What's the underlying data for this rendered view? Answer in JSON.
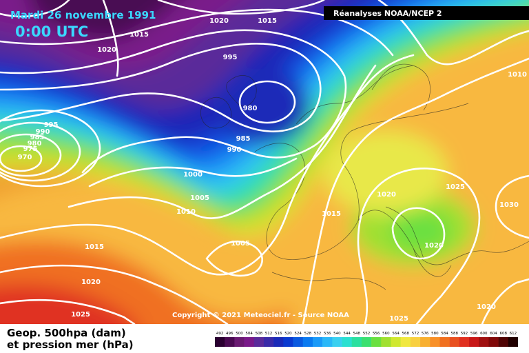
{
  "header": {
    "date": "Mardi 26 novembre 1991",
    "time": "0:00 UTC",
    "source_banner": "Réanalyses NOAA/NCEP 2"
  },
  "copyright": "Copyright © 2021 Meteociel.fr - Source NOAA",
  "legend": {
    "line1": "Geop. 500hpa (dam)",
    "line2": "et pression mer (hPa)",
    "ticks": [
      "492",
      "496",
      "500",
      "504",
      "508",
      "512",
      "516",
      "520",
      "524",
      "528",
      "532",
      "536",
      "540",
      "544",
      "548",
      "552",
      "556",
      "560",
      "564",
      "568",
      "572",
      "576",
      "580",
      "584",
      "588",
      "592",
      "596",
      "600",
      "604",
      "608",
      "612"
    ],
    "colors": [
      "#2a0030",
      "#4a0a52",
      "#6a1a72",
      "#7a1a8a",
      "#5a2a9a",
      "#3a2aa8",
      "#1a2ab8",
      "#0a3ad0",
      "#0a5ae0",
      "#0a7af0",
      "#1a9af8",
      "#2ab8f8",
      "#3ad0f0",
      "#2ae0d0",
      "#2ae0a0",
      "#3ae070",
      "#6ae040",
      "#a0e030",
      "#d0e830",
      "#f0e840",
      "#f8d040",
      "#f8b030",
      "#f89028",
      "#f07020",
      "#e85020",
      "#e03020",
      "#c81818",
      "#a01010",
      "#800808",
      "#500404",
      "#200000"
    ]
  },
  "chart_data": {
    "type": "map",
    "field": "500hPa geopotential (dam) shaded, sea-level pressure (hPa) contours",
    "isobar_labels": [
      {
        "text": "1020"
      },
      {
        "text": "1015"
      },
      {
        "text": "1015"
      },
      {
        "text": "1020"
      },
      {
        "text": "995"
      },
      {
        "text": "980"
      },
      {
        "text": "985"
      },
      {
        "text": "990"
      },
      {
        "text": "995"
      },
      {
        "text": "990"
      },
      {
        "text": "985"
      },
      {
        "text": "980"
      },
      {
        "text": "975"
      },
      {
        "text": "970"
      },
      {
        "text": "1000"
      },
      {
        "text": "1005"
      },
      {
        "text": "1010"
      },
      {
        "text": "1005"
      },
      {
        "text": "1015"
      },
      {
        "text": "1020"
      },
      {
        "text": "1025"
      },
      {
        "text": "1015"
      },
      {
        "text": "1020"
      },
      {
        "text": "1025"
      },
      {
        "text": "1030"
      },
      {
        "text": "1020"
      },
      {
        "text": "1010"
      },
      {
        "text": "1025"
      },
      {
        "text": "1020"
      }
    ]
  }
}
